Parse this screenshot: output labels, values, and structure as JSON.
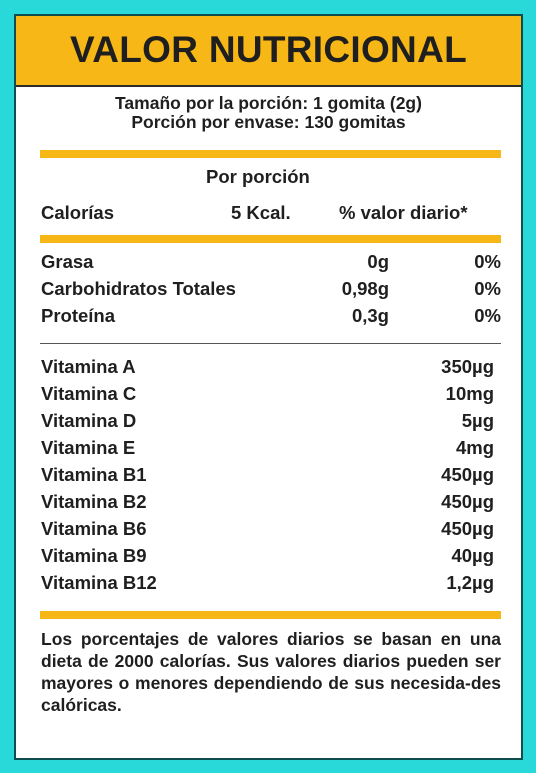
{
  "title": "VALOR NUTRICIONAL",
  "serving": {
    "size": "Tamaño por la porción: 1 gomita (2g)",
    "per_container": "Porción por envase: 130 gomitas"
  },
  "per_serving_label": "Por porción",
  "calories": {
    "label": "Calorías",
    "value": "5 Kcal.",
    "daily_value_header": "% valor diario*"
  },
  "macros": [
    {
      "label": "Grasa",
      "amount": "0g",
      "dv": "0%"
    },
    {
      "label": "Carbohidratos Totales",
      "amount": "0,98g",
      "dv": "0%"
    },
    {
      "label": "Proteína",
      "amount": "0,3g",
      "dv": "0%"
    }
  ],
  "vitamins": [
    {
      "label": "Vitamina A",
      "amount": "350µg"
    },
    {
      "label": "Vitamina C",
      "amount": "10mg"
    },
    {
      "label": "Vitamina D",
      "amount": "5µg"
    },
    {
      "label": "Vitamina E",
      "amount": "4mg"
    },
    {
      "label": "Vitamina B1",
      "amount": "450µg"
    },
    {
      "label": "Vitamina B2",
      "amount": "450µg"
    },
    {
      "label": "Vitamina B6",
      "amount": "450µg"
    },
    {
      "label": "Vitamina B9",
      "amount": "40µg"
    },
    {
      "label": "Vitamina B12",
      "amount": "1,2µg"
    }
  ],
  "footnote": "Los porcentajes de valores diarios se basan en una dieta de 2000 calorías. Sus valores diarios pueden ser mayores o menores dependiendo de sus necesida-des calóricas.",
  "colors": {
    "background": "#29d8d9",
    "accent": "#f7b716",
    "text": "#1f1f1f"
  }
}
